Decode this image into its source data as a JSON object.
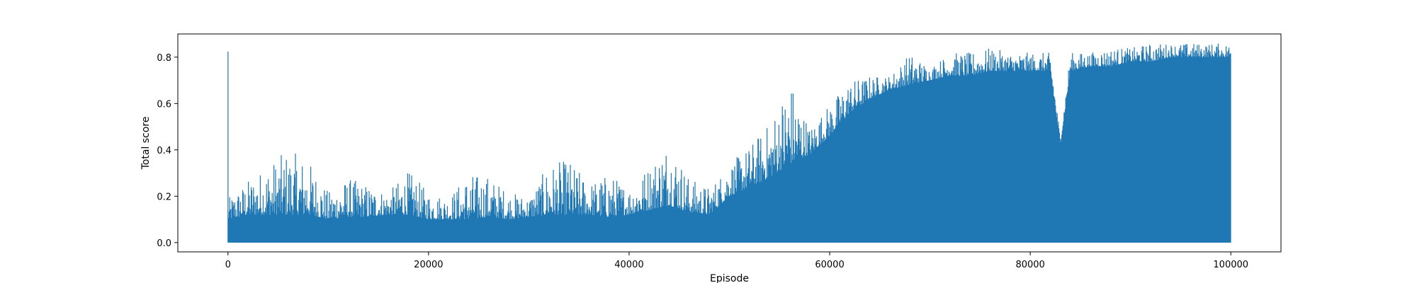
{
  "chart_data": {
    "type": "area",
    "title": "",
    "xlabel": "Episode",
    "ylabel": "Total score",
    "xlim": [
      -5000,
      105000
    ],
    "ylim": [
      -0.04,
      0.9
    ],
    "xticks": [
      0,
      20000,
      40000,
      60000,
      80000,
      100000
    ],
    "xtick_labels": [
      "0",
      "20000",
      "40000",
      "60000",
      "80000",
      "100000"
    ],
    "yticks": [
      0.0,
      0.2,
      0.4,
      0.6,
      0.8
    ],
    "ytick_labels": [
      "0.0",
      "0.2",
      "0.4",
      "0.6",
      "0.8"
    ],
    "grid": false,
    "color": "#1f77b4",
    "series": [
      {
        "x": [
          0,
          2000,
          4000,
          6000,
          8000,
          10000,
          12000,
          14000,
          16000,
          18000,
          20000,
          22000,
          24000,
          26000,
          28000,
          30000,
          32000,
          34000,
          36000,
          38000,
          40000,
          42000,
          44000,
          46000,
          48000,
          50000,
          52000,
          54000,
          56000,
          58000,
          60000,
          62000,
          64000,
          66000,
          68000,
          70000,
          72000,
          74000,
          76000,
          78000,
          80000,
          82000,
          83000,
          84000,
          86000,
          88000,
          90000,
          92000,
          94000,
          96000,
          98000,
          100000
        ],
        "upper": [
          0.19,
          0.27,
          0.34,
          0.4,
          0.36,
          0.22,
          0.28,
          0.25,
          0.22,
          0.31,
          0.22,
          0.2,
          0.3,
          0.29,
          0.22,
          0.2,
          0.34,
          0.36,
          0.26,
          0.3,
          0.24,
          0.34,
          0.46,
          0.28,
          0.24,
          0.34,
          0.42,
          0.52,
          0.72,
          0.5,
          0.6,
          0.7,
          0.72,
          0.72,
          0.82,
          0.76,
          0.82,
          0.82,
          0.84,
          0.82,
          0.82,
          0.82,
          0.46,
          0.82,
          0.82,
          0.84,
          0.84,
          0.86,
          0.86,
          0.86,
          0.86,
          0.86
        ],
        "lower": [
          0.1,
          0.12,
          0.12,
          0.12,
          0.12,
          0.1,
          0.11,
          0.11,
          0.12,
          0.12,
          0.1,
          0.1,
          0.1,
          0.11,
          0.1,
          0.11,
          0.12,
          0.12,
          0.12,
          0.11,
          0.12,
          0.14,
          0.16,
          0.13,
          0.12,
          0.2,
          0.24,
          0.28,
          0.34,
          0.38,
          0.46,
          0.56,
          0.62,
          0.66,
          0.68,
          0.7,
          0.72,
          0.72,
          0.74,
          0.74,
          0.74,
          0.74,
          0.42,
          0.74,
          0.76,
          0.76,
          0.78,
          0.78,
          0.8,
          0.8,
          0.8,
          0.8
        ],
        "floor": 0.0
      }
    ]
  }
}
